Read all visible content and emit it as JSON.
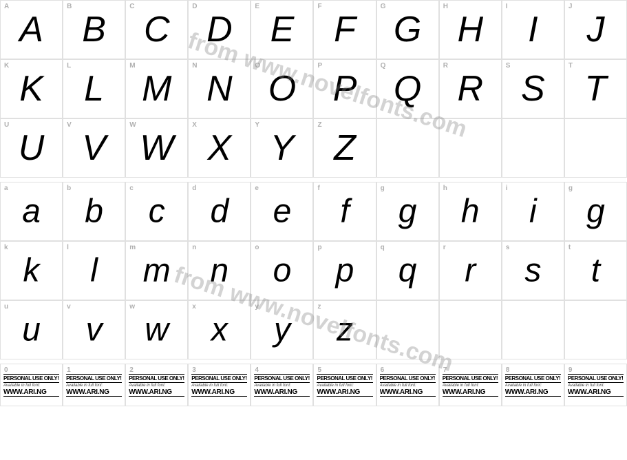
{
  "watermark_text": "from www.novelfonts.com",
  "rows_upper": [
    {
      "labels": [
        "A",
        "B",
        "C",
        "D",
        "E",
        "F",
        "G",
        "H",
        "I",
        "J"
      ],
      "glyphs": [
        "A",
        "B",
        "C",
        "D",
        "E",
        "F",
        "G",
        "H",
        "I",
        "J"
      ]
    },
    {
      "labels": [
        "K",
        "L",
        "M",
        "N",
        "O",
        "P",
        "Q",
        "R",
        "S",
        "T"
      ],
      "glyphs": [
        "K",
        "L",
        "M",
        "N",
        "O",
        "P",
        "Q",
        "R",
        "S",
        "T"
      ]
    },
    {
      "labels": [
        "U",
        "V",
        "W",
        "X",
        "Y",
        "Z",
        "",
        "",
        "",
        ""
      ],
      "glyphs": [
        "U",
        "V",
        "W",
        "X",
        "Y",
        "Z",
        "",
        "",
        "",
        ""
      ]
    }
  ],
  "rows_lower": [
    {
      "labels": [
        "a",
        "b",
        "c",
        "d",
        "e",
        "f",
        "g",
        "h",
        "i",
        "g"
      ],
      "glyphs": [
        "a",
        "b",
        "c",
        "d",
        "e",
        "f",
        "g",
        "h",
        "i",
        "g"
      ]
    },
    {
      "labels": [
        "k",
        "l",
        "m",
        "n",
        "o",
        "p",
        "q",
        "r",
        "s",
        "t"
      ],
      "glyphs": [
        "k",
        "l",
        "m",
        "n",
        "o",
        "p",
        "q",
        "r",
        "s",
        "t"
      ]
    },
    {
      "labels": [
        "u",
        "v",
        "w",
        "x",
        "y",
        "z",
        "",
        "",
        "",
        ""
      ],
      "glyphs": [
        "u",
        "v",
        "w",
        "x",
        "y",
        "z",
        "",
        "",
        "",
        ""
      ]
    }
  ],
  "numbers_row": {
    "labels": [
      "0",
      "1",
      "2",
      "3",
      "4",
      "5",
      "6",
      "7",
      "8",
      "9"
    ]
  },
  "personal_block": {
    "line1": "PERSONAL USE ONLY!",
    "line2": "Available in full font:",
    "line3": "WWW.ARI.NG"
  },
  "colors": {
    "border": "#e0e0e0",
    "label": "#b0b0b0",
    "glyph": "#000000",
    "watermark": "rgba(128,128,128,0.35)"
  }
}
